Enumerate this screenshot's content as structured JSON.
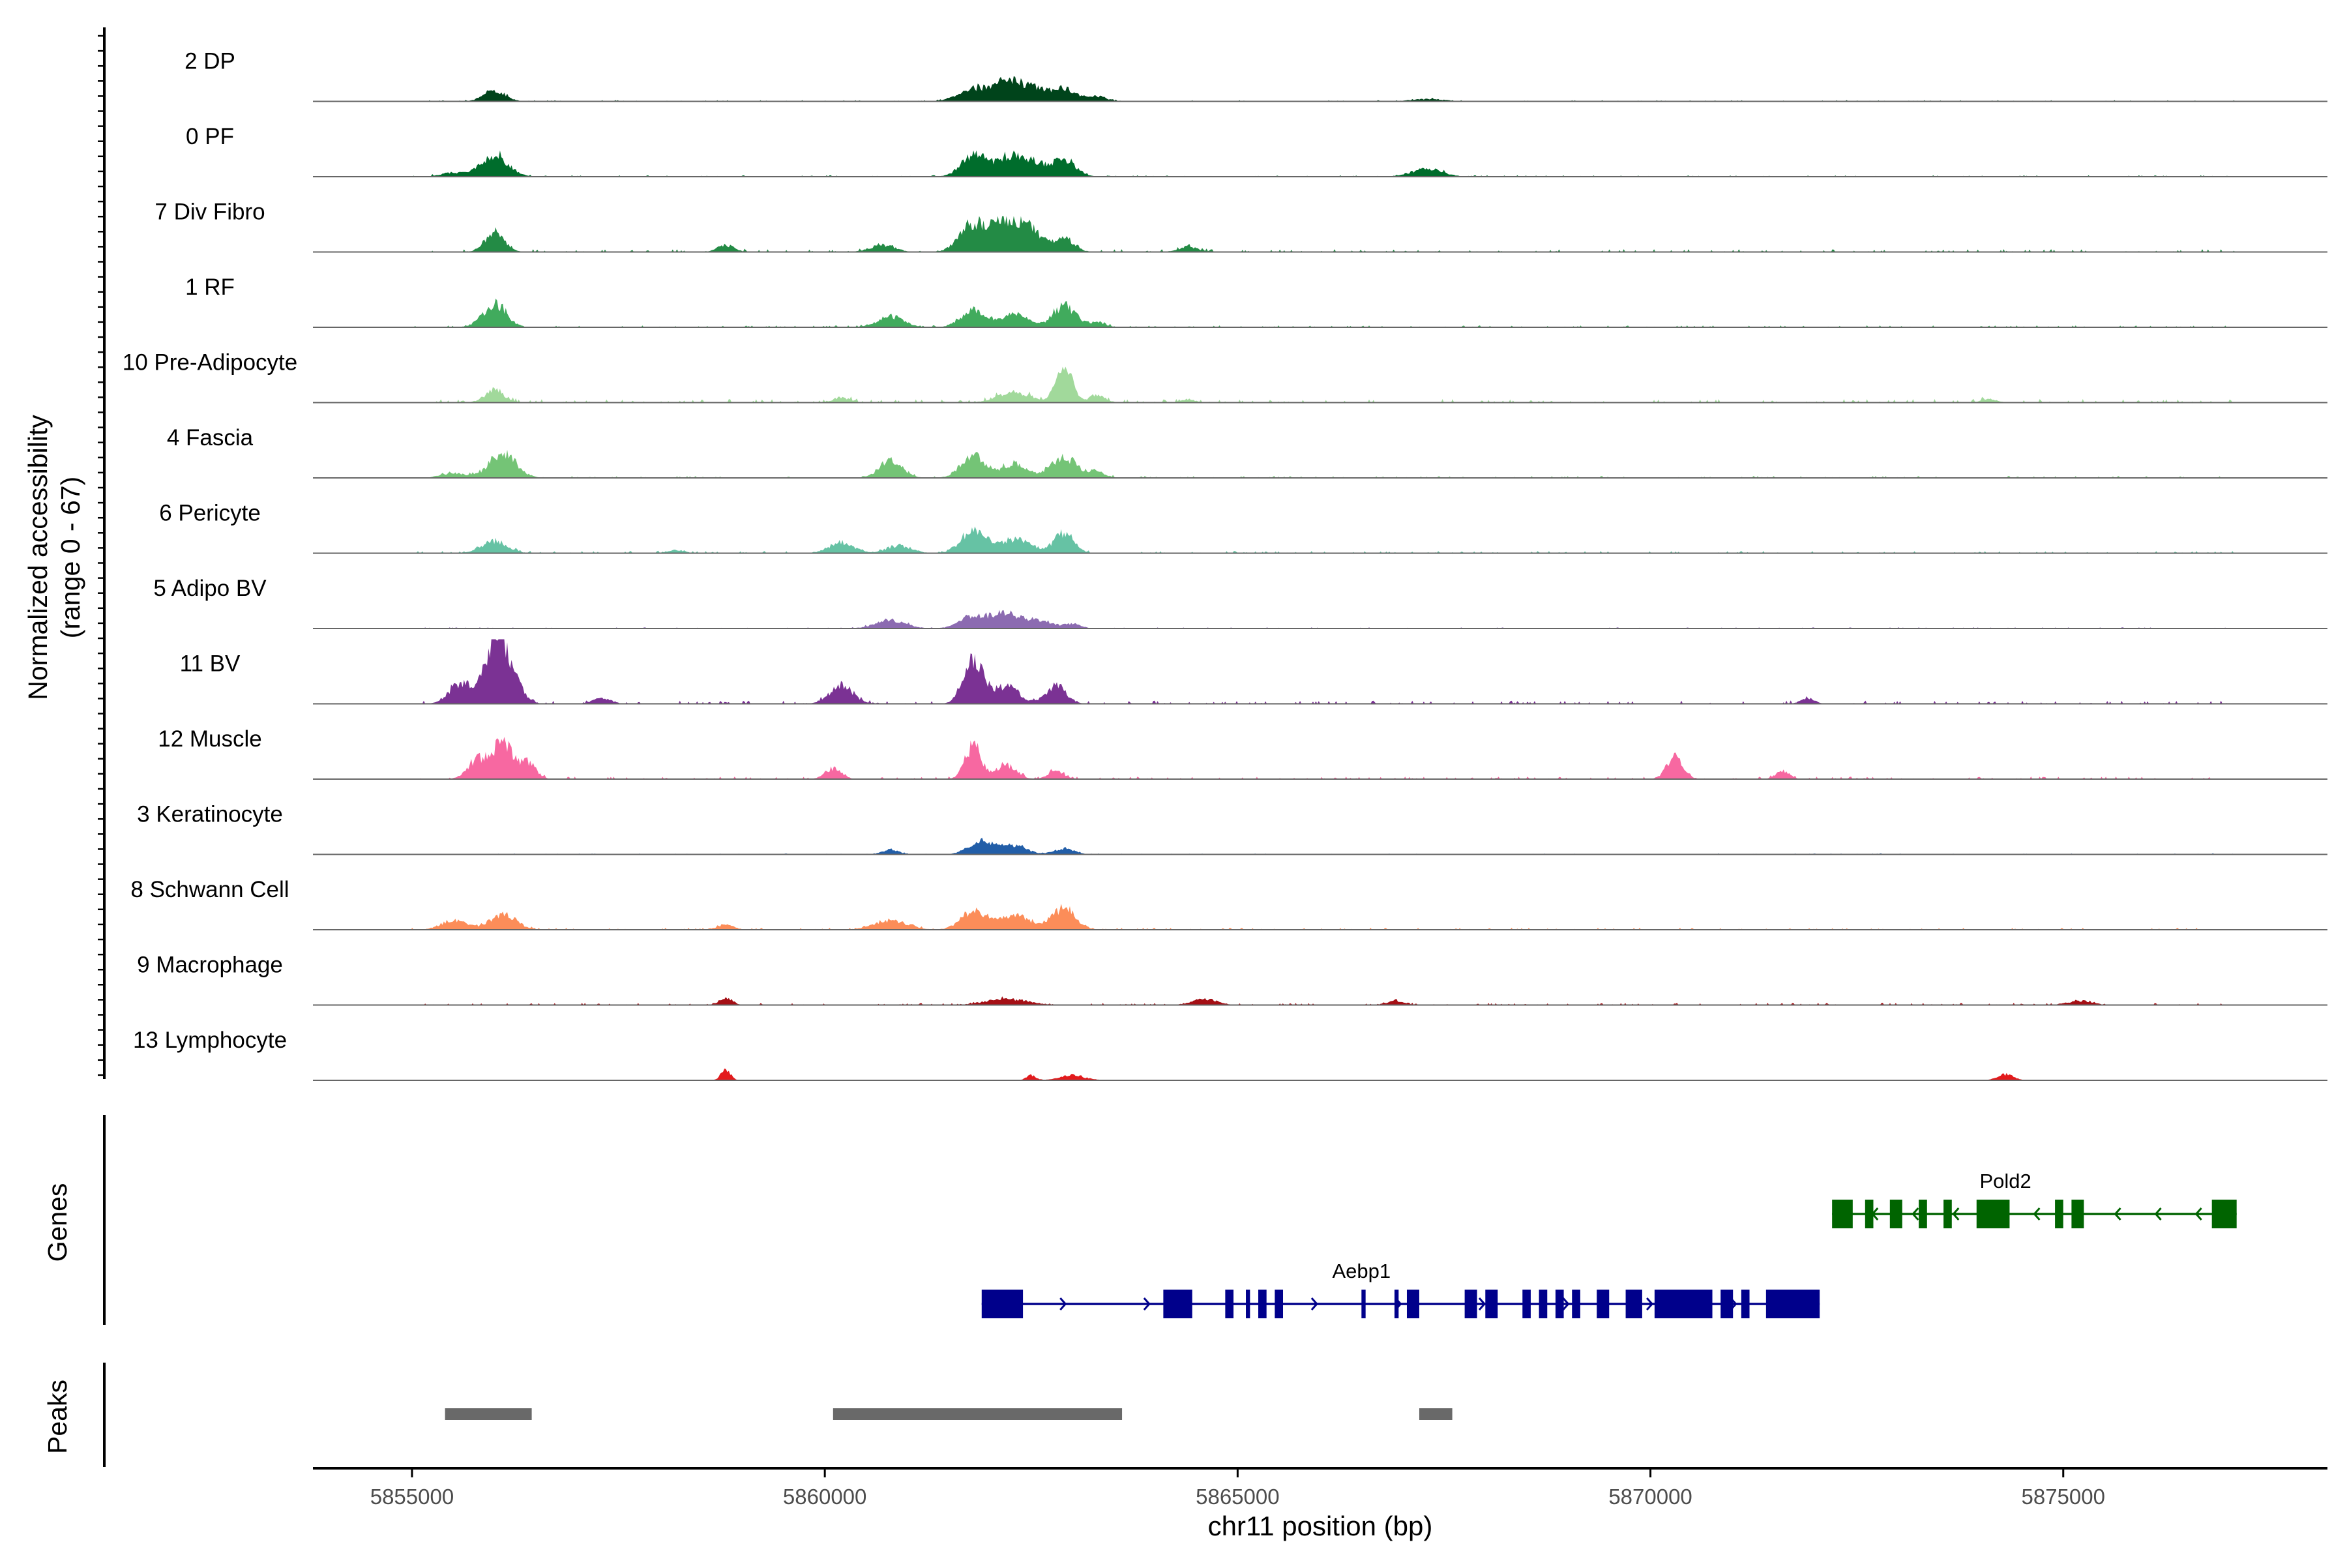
{
  "chart_data": {
    "type": "area",
    "title": "",
    "ylabel_line1": "Normalized accessibility",
    "ylabel_line2": "(range 0 - 67)",
    "y_range": [
      0,
      67
    ],
    "xlabel": "chr11 position (bp)",
    "xlim": [
      5853800,
      5878200
    ],
    "x_ticks": [
      5855000,
      5860000,
      5865000,
      5870000,
      5875000
    ],
    "x_tick_labels": [
      "5855000",
      "5860000",
      "5865000",
      "5870000",
      "5875000"
    ],
    "tracks": [
      {
        "name": "2 DP",
        "color": "#00441b",
        "scale": 0.35,
        "peaks": [
          [
            5856000,
            0.45,
            130
          ],
          [
            5861800,
            0.55,
            180
          ],
          [
            5862200,
            0.7,
            150
          ],
          [
            5862500,
            0.55,
            180
          ],
          [
            5862900,
            0.5,
            150
          ],
          [
            5863300,
            0.2,
            120
          ],
          [
            5867300,
            0.1,
            200
          ]
        ],
        "noise": 0.05
      },
      {
        "name": "0 PF",
        "color": "#006d2c",
        "scale": 0.4,
        "peaks": [
          [
            5856000,
            0.8,
            160
          ],
          [
            5861800,
            0.75,
            150
          ],
          [
            5862200,
            0.65,
            150
          ],
          [
            5862500,
            0.55,
            160
          ],
          [
            5862900,
            0.6,
            140
          ],
          [
            5867300,
            0.3,
            180
          ],
          [
            5855500,
            0.15,
            150
          ]
        ],
        "noise": 0.05
      },
      {
        "name": "7 Div Fibro",
        "color": "#238b45",
        "scale": 0.5,
        "peaks": [
          [
            5856000,
            0.55,
            120
          ],
          [
            5861800,
            0.85,
            160
          ],
          [
            5862200,
            0.9,
            150
          ],
          [
            5862500,
            0.6,
            140
          ],
          [
            5862900,
            0.4,
            120
          ],
          [
            5860700,
            0.2,
            150
          ],
          [
            5858800,
            0.2,
            100
          ],
          [
            5864400,
            0.15,
            120
          ]
        ],
        "noise": 0.08
      },
      {
        "name": "1 RF",
        "color": "#41ab5d",
        "scale": 0.45,
        "peaks": [
          [
            5856000,
            0.75,
            140
          ],
          [
            5860800,
            0.35,
            160
          ],
          [
            5861800,
            0.55,
            150
          ],
          [
            5862300,
            0.45,
            150
          ],
          [
            5862900,
            0.7,
            140
          ],
          [
            5863300,
            0.15,
            100
          ]
        ],
        "noise": 0.06
      },
      {
        "name": "10 Pre-Adipocyte",
        "color": "#a1d99b",
        "scale": 0.5,
        "peaks": [
          [
            5856000,
            0.35,
            120
          ],
          [
            5862300,
            0.3,
            200
          ],
          [
            5862900,
            1.0,
            100
          ],
          [
            5863300,
            0.2,
            100
          ],
          [
            5860200,
            0.15,
            100
          ],
          [
            5864400,
            0.1,
            80
          ],
          [
            5874100,
            0.1,
            100
          ]
        ],
        "noise": 0.1
      },
      {
        "name": "4 Fascia",
        "color": "#74c476",
        "scale": 0.45,
        "peaks": [
          [
            5856100,
            0.8,
            160
          ],
          [
            5860800,
            0.55,
            140
          ],
          [
            5861800,
            0.7,
            150
          ],
          [
            5862300,
            0.45,
            150
          ],
          [
            5862900,
            0.65,
            160
          ],
          [
            5863300,
            0.2,
            100
          ],
          [
            5855500,
            0.15,
            150
          ]
        ],
        "noise": 0.06
      },
      {
        "name": "6 Pericyte",
        "color": "#66c2a4",
        "scale": 0.45,
        "peaks": [
          [
            5856000,
            0.4,
            150
          ],
          [
            5860200,
            0.35,
            150
          ],
          [
            5860900,
            0.25,
            150
          ],
          [
            5861800,
            0.7,
            150
          ],
          [
            5862300,
            0.45,
            200
          ],
          [
            5862900,
            0.65,
            120
          ],
          [
            5858200,
            0.1,
            100
          ]
        ],
        "noise": 0.07
      },
      {
        "name": "5 Adipo BV",
        "color": "#8c6bb1",
        "scale": 0.35,
        "peaks": [
          [
            5860800,
            0.35,
            180
          ],
          [
            5861800,
            0.55,
            160
          ],
          [
            5862200,
            0.65,
            160
          ],
          [
            5862600,
            0.35,
            150
          ],
          [
            5863000,
            0.2,
            100
          ]
        ],
        "noise": 0.05
      },
      {
        "name": "11 BV",
        "color": "#7b3294",
        "scale": 0.9,
        "peaks": [
          [
            5855600,
            0.35,
            140
          ],
          [
            5856000,
            0.95,
            120
          ],
          [
            5856200,
            0.5,
            120
          ],
          [
            5860200,
            0.3,
            140
          ],
          [
            5861800,
            0.7,
            120
          ],
          [
            5862200,
            0.3,
            150
          ],
          [
            5862800,
            0.3,
            120
          ],
          [
            5857300,
            0.1,
            100
          ],
          [
            5871900,
            0.1,
            80
          ]
        ],
        "noise": 0.05
      },
      {
        "name": "12 Muscle",
        "color": "#f768a1",
        "scale": 0.6,
        "peaks": [
          [
            5855800,
            0.5,
            120
          ],
          [
            5856100,
            0.9,
            110
          ],
          [
            5856400,
            0.4,
            100
          ],
          [
            5860100,
            0.25,
            100
          ],
          [
            5861800,
            0.8,
            100
          ],
          [
            5862200,
            0.35,
            120
          ],
          [
            5862800,
            0.2,
            100
          ],
          [
            5870300,
            0.55,
            100
          ],
          [
            5871600,
            0.2,
            80
          ]
        ],
        "noise": 0.06
      },
      {
        "name": "3 Keratinocyte",
        "color": "#225ea8",
        "scale": 0.35,
        "peaks": [
          [
            5861900,
            0.6,
            150
          ],
          [
            5862300,
            0.35,
            150
          ],
          [
            5862900,
            0.25,
            120
          ],
          [
            5860800,
            0.2,
            100
          ]
        ],
        "noise": 0.04
      },
      {
        "name": "8 Schwann Cell",
        "color": "#fc8d59",
        "scale": 0.45,
        "peaks": [
          [
            5855500,
            0.3,
            150
          ],
          [
            5856100,
            0.5,
            160
          ],
          [
            5858800,
            0.15,
            100
          ],
          [
            5860800,
            0.3,
            200
          ],
          [
            5861800,
            0.6,
            150
          ],
          [
            5862300,
            0.45,
            200
          ],
          [
            5862900,
            0.7,
            140
          ]
        ],
        "noise": 0.06
      },
      {
        "name": "9 Macrophage",
        "color": "#a50f15",
        "scale": 0.3,
        "peaks": [
          [
            5858800,
            0.35,
            80
          ],
          [
            5862200,
            0.3,
            250
          ],
          [
            5864600,
            0.3,
            150
          ],
          [
            5866900,
            0.2,
            100
          ],
          [
            5875200,
            0.2,
            150
          ]
        ],
        "noise": 0.1
      },
      {
        "name": "13 Lymphocyte",
        "color": "#e31a1c",
        "scale": 0.25,
        "peaks": [
          [
            5858800,
            0.6,
            60
          ],
          [
            5862500,
            0.3,
            60
          ],
          [
            5863000,
            0.3,
            150
          ],
          [
            5874300,
            0.35,
            100
          ]
        ],
        "noise": 0.0
      }
    ],
    "genes_label": "Genes",
    "genes": [
      {
        "name": "Pold2",
        "color": "#006400",
        "start": 5872200,
        "end": 5877100,
        "strand": "-",
        "exons": [
          [
            5872200,
            5872450
          ],
          [
            5872600,
            5872700
          ],
          [
            5872900,
            5873050
          ],
          [
            5873250,
            5873350
          ],
          [
            5873550,
            5873650
          ],
          [
            5873950,
            5874350
          ],
          [
            5874900,
            5875000
          ],
          [
            5875100,
            5875250
          ],
          [
            5876800,
            5877100
          ]
        ]
      },
      {
        "name": "Aebp1",
        "color": "#00008b",
        "start": 5861900,
        "end": 5872050,
        "strand": "+",
        "exons": [
          [
            5861900,
            5862400
          ],
          [
            5864100,
            5864450
          ],
          [
            5864850,
            5864950
          ],
          [
            5865100,
            5865150
          ],
          [
            5865250,
            5865350
          ],
          [
            5865450,
            5865550
          ],
          [
            5866500,
            5866550
          ],
          [
            5866900,
            5866950
          ],
          [
            5867050,
            5867200
          ],
          [
            5867750,
            5867900
          ],
          [
            5868000,
            5868150
          ],
          [
            5868450,
            5868550
          ],
          [
            5868650,
            5868750
          ],
          [
            5868850,
            5868950
          ],
          [
            5869050,
            5869150
          ],
          [
            5869350,
            5869500
          ],
          [
            5869700,
            5869900
          ],
          [
            5870050,
            5870750
          ],
          [
            5870850,
            5871000
          ],
          [
            5871100,
            5871200
          ],
          [
            5871400,
            5872050
          ]
        ]
      }
    ],
    "peaks_label": "Peaks",
    "peaks_color": "#696969",
    "peak_regions": [
      [
        5855400,
        5856450
      ],
      [
        5860100,
        5863600
      ],
      [
        5867200,
        5867600
      ]
    ]
  }
}
